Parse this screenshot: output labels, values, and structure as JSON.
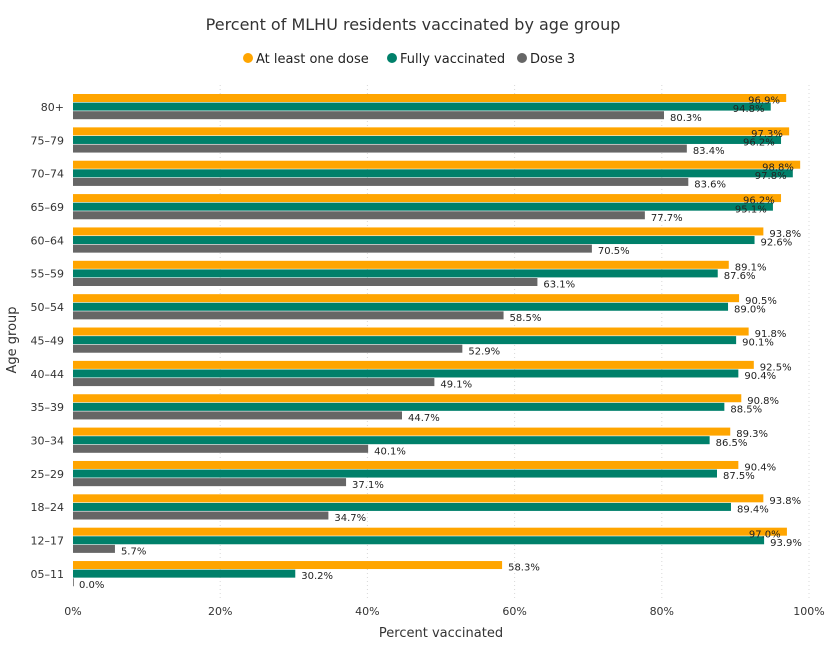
{
  "chart_data": {
    "type": "bar",
    "orientation": "horizontal",
    "title": "Percent of MLHU residents vaccinated by age group",
    "xlabel": "Percent vaccinated",
    "ylabel": "Age group",
    "xlim": [
      0,
      100
    ],
    "xticks": [
      "0%",
      "20%",
      "40%",
      "60%",
      "80%",
      "100%"
    ],
    "xtick_values": [
      0,
      20,
      40,
      60,
      80,
      100
    ],
    "grid": true,
    "legend_position": "top-center",
    "categories": [
      "80+",
      "75–79",
      "70–74",
      "65–69",
      "60–64",
      "55–59",
      "50–54",
      "45–49",
      "40–44",
      "35–39",
      "30–34",
      "25–29",
      "18–24",
      "12–17",
      "05–11"
    ],
    "series": [
      {
        "name": "At least one dose",
        "color": "#FFA500",
        "values": [
          96.9,
          97.3,
          98.8,
          96.2,
          93.8,
          89.1,
          90.5,
          91.8,
          92.5,
          90.8,
          89.3,
          90.4,
          93.8,
          97.0,
          58.3
        ],
        "labels": [
          "96.9%",
          "97.3%",
          "98.8%",
          "96.2%",
          "93.8%",
          "89.1%",
          "90.5%",
          "91.8%",
          "92.5%",
          "90.8%",
          "89.3%",
          "90.4%",
          "93.8%",
          "97.0%",
          "58.3%"
        ]
      },
      {
        "name": "Fully vaccinated",
        "color": "#00806A",
        "values": [
          94.8,
          96.2,
          97.8,
          95.1,
          92.6,
          87.6,
          89.0,
          90.1,
          90.4,
          88.5,
          86.5,
          87.5,
          89.4,
          93.9,
          30.2
        ],
        "labels": [
          "94.8%",
          "96.2%",
          "97.8%",
          "95.1%",
          "92.6%",
          "87.6%",
          "89.0%",
          "90.1%",
          "90.4%",
          "88.5%",
          "86.5%",
          "87.5%",
          "89.4%",
          "93.9%",
          "30.2%"
        ]
      },
      {
        "name": "Dose 3",
        "color": "#666666",
        "values": [
          80.3,
          83.4,
          83.6,
          77.7,
          70.5,
          63.1,
          58.5,
          52.9,
          49.1,
          44.7,
          40.1,
          37.1,
          34.7,
          5.7,
          0.0
        ],
        "labels": [
          "80.3%",
          "83.4%",
          "83.6%",
          "77.7%",
          "70.5%",
          "63.1%",
          "58.5%",
          "52.9%",
          "49.1%",
          "44.7%",
          "40.1%",
          "37.1%",
          "34.7%",
          "5.7%",
          "0.0%"
        ]
      }
    ]
  }
}
